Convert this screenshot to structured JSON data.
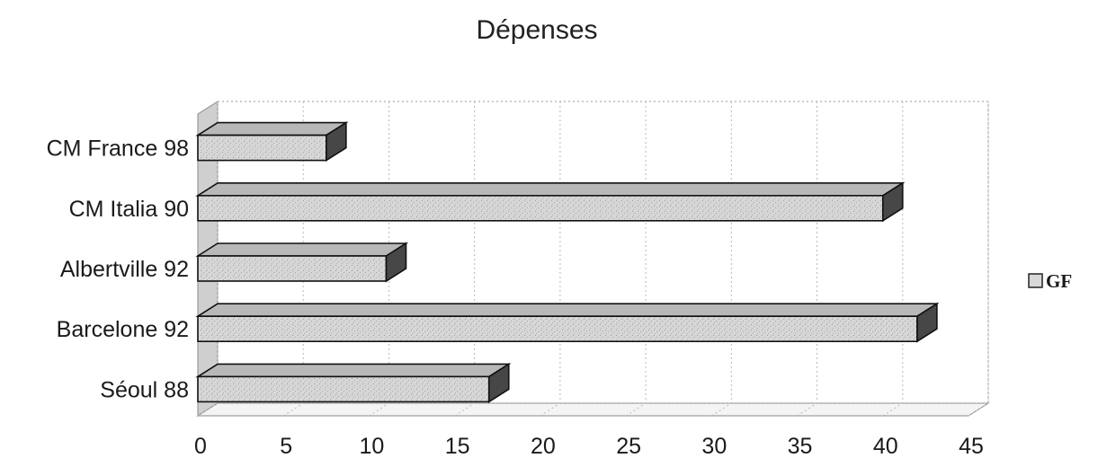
{
  "chart_data": {
    "type": "bar",
    "orientation": "horizontal",
    "three_d": true,
    "title": "Dépenses",
    "categories": [
      "CM France 98",
      "CM Italia 90",
      "Albertville 92",
      "Barcelone 92",
      "Séoul 88"
    ],
    "series": [
      {
        "name": "GF",
        "values": [
          7.5,
          40,
          11,
          42,
          17
        ]
      }
    ],
    "xlim": [
      0,
      45
    ],
    "xticks": [
      "0",
      "5",
      "10",
      "15",
      "20",
      "25",
      "30",
      "35",
      "40",
      "45"
    ],
    "grid": true,
    "legend_position": "right",
    "colors": {
      "bar_top": "#b8b8b8",
      "bar_front": "#d4d4d4",
      "bar_side": "#474747"
    }
  }
}
